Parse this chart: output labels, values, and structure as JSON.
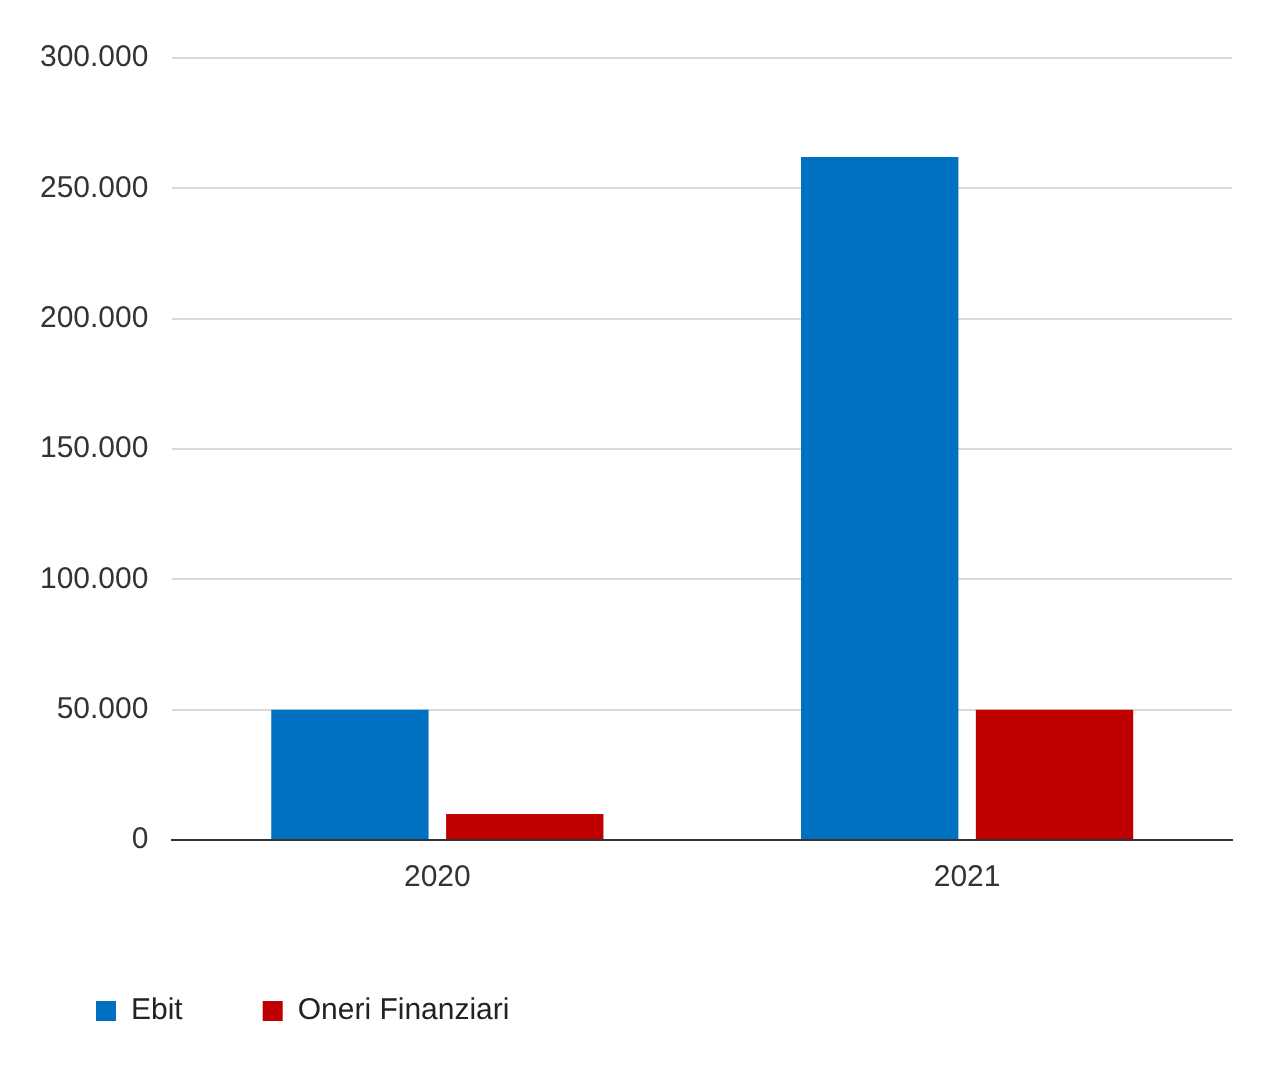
{
  "chart_data": {
    "type": "bar",
    "categories": [
      "2020",
      "2021"
    ],
    "series": [
      {
        "name": "Ebit",
        "color": "#0070c0",
        "values": [
          50000,
          262000
        ]
      },
      {
        "name": "Oneri Finanziari",
        "color": "#c00000",
        "values": [
          10000,
          50000
        ]
      }
    ],
    "ylim": [
      0,
      300000
    ],
    "yticks": [
      {
        "value": 0,
        "label": "0"
      },
      {
        "value": 50000,
        "label": "50.000"
      },
      {
        "value": 100000,
        "label": "100.000"
      },
      {
        "value": 150000,
        "label": "150.000"
      },
      {
        "value": 200000,
        "label": "200.000"
      },
      {
        "value": 250000,
        "label": "250.000"
      },
      {
        "value": 300000,
        "label": "300.000"
      }
    ],
    "grid": "y",
    "legend": "bottom"
  }
}
